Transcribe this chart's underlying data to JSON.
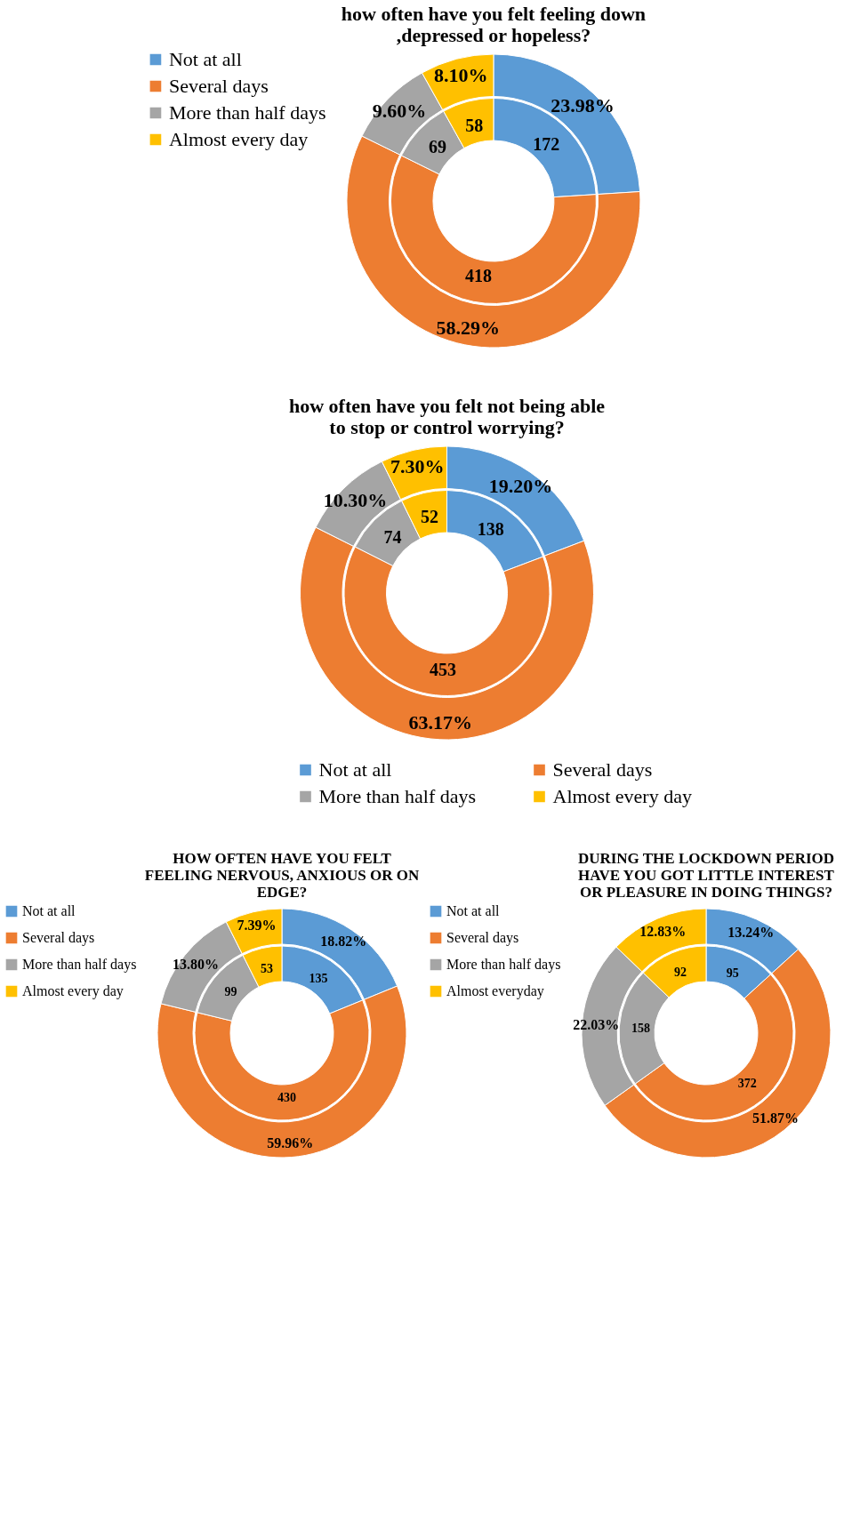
{
  "chart_data": [
    {
      "type": "donut",
      "title": "how often have you felt feeling down ,depressed or hopeless?",
      "categories": [
        "Not at all",
        "Several days",
        "More than half days",
        "Almost every day"
      ],
      "colors": [
        "#5b9bd5",
        "#ed7d31",
        "#a5a5a5",
        "#ffc000"
      ],
      "legend": "left",
      "series": [
        {
          "values": [
            23.98,
            58.29,
            9.6,
            8.1
          ],
          "value_labels": [
            "23.98%",
            "58.29%",
            "9.60%",
            "8.10%"
          ]
        },
        {
          "values": [
            172,
            418,
            69,
            58
          ],
          "value_labels": [
            "172",
            "418",
            "69",
            "58"
          ]
        }
      ]
    },
    {
      "type": "donut",
      "title": "how often have you felt not being able to stop or control worrying?",
      "categories": [
        "Not at all",
        "Several days",
        "More than half days",
        "Almost every day"
      ],
      "colors": [
        "#5b9bd5",
        "#ed7d31",
        "#a5a5a5",
        "#ffc000"
      ],
      "legend": "bottom",
      "series": [
        {
          "values": [
            19.2,
            63.17,
            10.3,
            7.3
          ],
          "value_labels": [
            "19.20%",
            "63.17%",
            "10.30%",
            "7.30%"
          ]
        },
        {
          "values": [
            138,
            453,
            74,
            52
          ],
          "value_labels": [
            "138",
            "453",
            "74",
            "52"
          ]
        }
      ]
    },
    {
      "type": "donut",
      "title": "HOW OFTEN HAVE YOU FELT FEELING NERVOUS, ANXIOUS OR ON EDGE?",
      "categories": [
        "Not at all",
        "Several days",
        "More than half days",
        "Almost every day"
      ],
      "colors": [
        "#5b9bd5",
        "#ed7d31",
        "#a5a5a5",
        "#ffc000"
      ],
      "legend": "left",
      "series": [
        {
          "values": [
            18.82,
            59.96,
            13.8,
            7.39
          ],
          "value_labels": [
            "18.82%",
            "59.96%",
            "13.80%",
            "7.39%"
          ]
        },
        {
          "values": [
            135,
            430,
            99,
            53
          ],
          "value_labels": [
            "135",
            "430",
            "99",
            "53"
          ]
        }
      ]
    },
    {
      "type": "donut",
      "title": "DURING THE LOCKDOWN PERIOD HAVE YOU GOT LITTLE INTEREST OR PLEASURE IN DOING THINGS?",
      "categories": [
        "Not at all",
        "Several days",
        "More than half days",
        "Almost everyday"
      ],
      "colors": [
        "#5b9bd5",
        "#ed7d31",
        "#a5a5a5",
        "#ffc000"
      ],
      "legend": "left",
      "series": [
        {
          "values": [
            13.24,
            51.87,
            22.03,
            12.83
          ],
          "value_labels": [
            "13.24%",
            "51.87%",
            "22.03%",
            "12.83%"
          ]
        },
        {
          "values": [
            95,
            372,
            158,
            92
          ],
          "value_labels": [
            "95",
            "372",
            "158",
            "92"
          ]
        }
      ]
    }
  ]
}
